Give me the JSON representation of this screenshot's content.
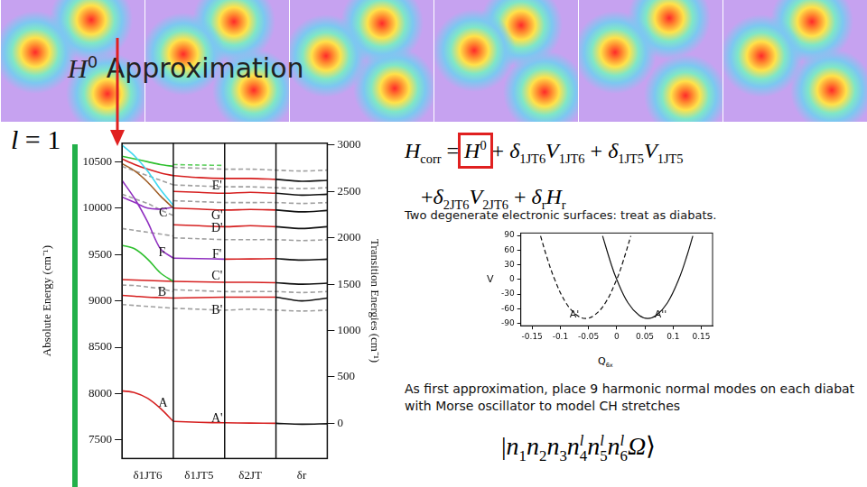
{
  "slide": {
    "title": [
      {
        "sym": "H",
        "sup": "0"
      },
      " Approximation"
    ],
    "ell": [
      {
        "sym": "l"
      },
      " = 1"
    ],
    "equation": [
      [
        {
          "sym": "H",
          "sub": "corr"
        },
        " = ",
        {
          "sym": "H",
          "sup": "0",
          "highlight": true
        },
        " + ",
        {
          "sym": "δ",
          "sub": "1JT6"
        },
        {
          "sym": "V",
          "sub": "1JT6"
        },
        " + ",
        {
          "sym": "δ",
          "sub": "1JT5"
        },
        {
          "sym": "V",
          "sub": "1JT5"
        }
      ],
      [
        "+",
        {
          "sym": "δ",
          "sub": "2JT6"
        },
        {
          "sym": "V",
          "sub": "2JT6"
        },
        " + ",
        {
          "sym": "δ",
          "sub": "r"
        },
        {
          "sym": "H",
          "sub": "r"
        }
      ]
    ],
    "text1": "Two degenerate electronic surfaces: treat as diabats.",
    "text2": "As first approximation, place 9 harmonic normal modes on each diabat with Morse oscillator to model CH stretches",
    "ket": [
      "|",
      {
        "sym": "n",
        "sub": "1"
      },
      {
        "sym": "n",
        "sub": "2"
      },
      {
        "sym": "n",
        "sub": "3"
      },
      {
        "sym": "n",
        "sub": "4",
        "sup": "l"
      },
      {
        "sym": "n",
        "sub": "5",
        "sup": "l"
      },
      {
        "sym": "n",
        "sub": "6",
        "sup": "l"
      },
      {
        "sym": "Ω"
      },
      "⟩"
    ]
  },
  "chart_data": [
    {
      "type": "line",
      "y_label": "Absolute Energy (cm⁻¹)",
      "y2_label": "Transition Energies (cm⁻¹)",
      "x": [
        0,
        0.25,
        0.5,
        0.75,
        1,
        1.5,
        2,
        2.5,
        3,
        3.5,
        4
      ],
      "xlim": [
        0,
        4
      ],
      "xticks": [
        {
          "value": 0.5,
          "label": "δ1JT6"
        },
        {
          "value": 1.5,
          "label": "δ1JT5"
        },
        {
          "value": 2.5,
          "label": "δ2JT"
        },
        {
          "value": 3.5,
          "label": "δr"
        }
      ],
      "separators": [
        1,
        2,
        3
      ],
      "ylim": [
        7300,
        10700
      ],
      "yticks": [
        7500,
        8000,
        8500,
        9000,
        9500,
        10000,
        10500
      ],
      "y2lim": [
        -380,
        3020
      ],
      "y2ticks": [
        0,
        500,
        1000,
        1500,
        2000,
        2500,
        3000
      ],
      "grid": false,
      "marker": "none",
      "series": [
        {
          "color": "#40d8f0",
          "line_style": "solid",
          "values": [
            10680,
            10560,
            10400,
            10200,
            10030,
            null,
            null,
            null,
            null,
            null,
            null
          ]
        },
        {
          "color": "#d62020",
          "line_style": "solid",
          "values": [
            10530,
            10470,
            10420,
            10380,
            10350,
            null,
            null,
            null,
            null,
            null,
            null
          ]
        },
        {
          "color": "#a0602a",
          "line_style": "solid",
          "values": [
            10480,
            10400,
            10280,
            10130,
            10000,
            null,
            null,
            null,
            null,
            null,
            null
          ]
        },
        {
          "color": "#30c030",
          "line_style": "solid",
          "values": [
            10560,
            10530,
            10500,
            10470,
            10450,
            null,
            null,
            null,
            null,
            null,
            null
          ]
        },
        {
          "color": "#9030c0",
          "line_style": "solid",
          "values": [
            10300,
            10100,
            9850,
            9560,
            9460,
            null,
            null,
            null,
            null,
            null,
            null
          ]
        },
        {
          "color": "#9030c0",
          "line_style": "solid",
          "values": [
            10120,
            10060,
            10000,
            9990,
            10010,
            null,
            null,
            null,
            null,
            null,
            null
          ]
        },
        {
          "color": "#30c030",
          "line_style": "solid",
          "values": [
            9600,
            9560,
            9450,
            9300,
            9210,
            null,
            null,
            null,
            null,
            null,
            null
          ]
        },
        {
          "color": "#d62020",
          "line_style": "solid",
          "values": [
            9230,
            9225,
            9220,
            9215,
            9210,
            null,
            null,
            null,
            null,
            null,
            null
          ]
        },
        {
          "color": "#d62020",
          "line_style": "solid",
          "values": [
            9060,
            9050,
            9040,
            9035,
            9030,
            null,
            null,
            null,
            null,
            null,
            null
          ]
        },
        {
          "color": "#d62020",
          "line_style": "solid",
          "values": [
            8030,
            8010,
            7950,
            7840,
            7700,
            null,
            null,
            null,
            null,
            null,
            null
          ]
        },
        {
          "color": "#a0a0a0",
          "line_style": "dashed",
          "values": [
            10450,
            10400,
            10350,
            10300,
            10250,
            null,
            null,
            null,
            null,
            null,
            null
          ]
        },
        {
          "color": "#a0a0a0",
          "line_style": "dashed",
          "values": [
            10150,
            10100,
            10050,
            9980,
            9920,
            null,
            null,
            null,
            null,
            null,
            null
          ]
        },
        {
          "color": "#a0a0a0",
          "line_style": "dashed",
          "values": [
            9780,
            9760,
            9740,
            9720,
            9700,
            null,
            null,
            null,
            null,
            null,
            null
          ]
        },
        {
          "color": "#a0a0a0",
          "line_style": "dashed",
          "values": [
            9170,
            9165,
            9150,
            9130,
            9100,
            null,
            null,
            null,
            null,
            null,
            null
          ]
        },
        {
          "color": "#a0a0a0",
          "line_style": "dashed",
          "values": [
            8960,
            8950,
            8940,
            8930,
            8920,
            null,
            null,
            null,
            null,
            null,
            null
          ]
        },
        {
          "color": "#d62020",
          "line_style": "solid",
          "values": [
            null,
            null,
            null,
            null,
            7700,
            7690,
            7685,
            7682,
            7680,
            null,
            null
          ]
        },
        {
          "color": "#d62020",
          "line_style": "solid",
          "values": [
            null,
            null,
            null,
            null,
            9030,
            9035,
            9040,
            9040,
            9040,
            null,
            null
          ]
        },
        {
          "color": "#d62020",
          "line_style": "solid",
          "values": [
            null,
            null,
            null,
            null,
            9210,
            9205,
            9200,
            9200,
            9195,
            null,
            null
          ]
        },
        {
          "color": "#9030c0",
          "line_style": "solid",
          "values": [
            null,
            null,
            null,
            null,
            9460,
            9455,
            9450,
            null,
            null,
            null,
            null
          ]
        },
        {
          "color": "#d62020",
          "line_style": "solid",
          "values": [
            null,
            null,
            null,
            null,
            null,
            null,
            9450,
            9452,
            9455,
            null,
            null
          ]
        },
        {
          "color": "#d62020",
          "line_style": "solid",
          "values": [
            null,
            null,
            null,
            null,
            9820,
            9810,
            9800,
            9810,
            9800,
            null,
            null
          ]
        },
        {
          "color": "#d62020",
          "line_style": "solid",
          "values": [
            null,
            null,
            null,
            null,
            10000,
            9990,
            9980,
            9985,
            9980,
            null,
            null
          ]
        },
        {
          "color": "#d62020",
          "line_style": "solid",
          "values": [
            null,
            null,
            null,
            null,
            10180,
            10170,
            10160,
            10170,
            10160,
            null,
            null
          ]
        },
        {
          "color": "#d62020",
          "line_style": "solid",
          "values": [
            null,
            null,
            null,
            null,
            10350,
            10330,
            10320,
            10320,
            10310,
            null,
            null
          ]
        },
        {
          "color": "#111111",
          "line_style": "solid",
          "values": [
            null,
            null,
            null,
            null,
            null,
            null,
            null,
            null,
            7680,
            7670,
            7675
          ]
        },
        {
          "color": "#111111",
          "line_style": "solid",
          "values": [
            null,
            null,
            null,
            null,
            null,
            null,
            null,
            null,
            9040,
            9000,
            9030
          ]
        },
        {
          "color": "#111111",
          "line_style": "solid",
          "values": [
            null,
            null,
            null,
            null,
            null,
            null,
            null,
            null,
            9195,
            9180,
            9190
          ]
        },
        {
          "color": "#111111",
          "line_style": "solid",
          "values": [
            null,
            null,
            null,
            null,
            null,
            null,
            null,
            null,
            9455,
            9440,
            9450
          ]
        },
        {
          "color": "#111111",
          "line_style": "solid",
          "values": [
            null,
            null,
            null,
            null,
            null,
            null,
            null,
            null,
            9800,
            9780,
            9800
          ]
        },
        {
          "color": "#111111",
          "line_style": "solid",
          "values": [
            null,
            null,
            null,
            null,
            null,
            null,
            null,
            null,
            9980,
            9960,
            9975
          ]
        },
        {
          "color": "#111111",
          "line_style": "solid",
          "values": [
            null,
            null,
            null,
            null,
            null,
            null,
            null,
            null,
            10160,
            10140,
            10150
          ]
        },
        {
          "color": "#111111",
          "line_style": "solid",
          "values": [
            null,
            null,
            null,
            null,
            null,
            null,
            null,
            null,
            10310,
            10290,
            10300
          ]
        },
        {
          "color": "#a0a0a0",
          "line_style": "dashed",
          "values": [
            null,
            null,
            null,
            null,
            10440,
            10430,
            10420,
            10420,
            10410,
            10400,
            10410
          ]
        },
        {
          "color": "#a0a0a0",
          "line_style": "dashed",
          "values": [
            null,
            null,
            null,
            null,
            10250,
            10240,
            10230,
            10230,
            10220,
            10210,
            10220
          ]
        },
        {
          "color": "#a0a0a0",
          "line_style": "dashed",
          "values": [
            null,
            null,
            null,
            null,
            10080,
            10070,
            10060,
            10060,
            10060,
            10050,
            10060
          ]
        },
        {
          "color": "#a0a0a0",
          "line_style": "dashed",
          "values": [
            null,
            null,
            null,
            null,
            9680,
            9670,
            9660,
            9660,
            9660,
            9650,
            9660
          ]
        },
        {
          "color": "#a0a0a0",
          "line_style": "dashed",
          "values": [
            null,
            null,
            null,
            null,
            9120,
            9110,
            9100,
            9100,
            9100,
            9090,
            9100
          ]
        },
        {
          "color": "#a0a0a0",
          "line_style": "dashed",
          "values": [
            null,
            null,
            null,
            null,
            8920,
            8910,
            8900,
            8910,
            8900,
            8890,
            8900
          ]
        },
        {
          "color": "#60d060",
          "line_style": "dashed",
          "values": [
            null,
            null,
            null,
            null,
            10470,
            10465,
            10460,
            null,
            null,
            null,
            null
          ]
        }
      ],
      "annotations": [
        {
          "text": "A",
          "x": 0.8,
          "y": 7890
        },
        {
          "text": "B",
          "x": 0.78,
          "y": 9090
        },
        {
          "text": "C",
          "x": 0.8,
          "y": 9943
        },
        {
          "text": "F",
          "x": 0.78,
          "y": 9520
        },
        {
          "text": "A'",
          "x": 1.85,
          "y": 7733
        },
        {
          "text": "B'",
          "x": 1.85,
          "y": 8894
        },
        {
          "text": "C'",
          "x": 1.85,
          "y": 9265
        },
        {
          "text": "F'",
          "x": 1.85,
          "y": 9497
        },
        {
          "text": "D'",
          "x": 1.85,
          "y": 9776
        },
        {
          "text": "G'",
          "x": 1.85,
          "y": 9915
        },
        {
          "text": "E'",
          "x": 1.85,
          "y": 10240
        }
      ]
    },
    {
      "type": "line",
      "x_label": {
        "base": "Q",
        "sub": "6x"
      },
      "y_label": "V",
      "xlim": [
        -0.17,
        0.17
      ],
      "xticks": [
        -0.15,
        -0.1,
        -0.05,
        0,
        0.05,
        0.1,
        0.15
      ],
      "ylim": [
        -95,
        95
      ],
      "yticks": [
        -90,
        -60,
        -30,
        0,
        30,
        60,
        90
      ],
      "grid": false,
      "marker": "none",
      "series": [
        {
          "color": "#111111",
          "line_style": "dashed",
          "x": [
            -0.135,
            -0.125,
            -0.11,
            -0.09,
            -0.07,
            -0.055,
            -0.04,
            -0.02,
            0,
            0.01,
            0.025
          ],
          "values": [
            89,
            50,
            0,
            -48,
            -74,
            -80,
            -74,
            -48,
            0,
            32,
            89
          ]
        },
        {
          "color": "#111111",
          "line_style": "solid",
          "x": [
            -0.025,
            -0.01,
            0,
            0.02,
            0.04,
            0.055,
            0.07,
            0.09,
            0.11,
            0.125,
            0.135
          ],
          "values": [
            89,
            32,
            0,
            -48,
            -74,
            -80,
            -74,
            -48,
            0,
            50,
            89
          ]
        }
      ],
      "annotations": [
        {
          "text": "A'",
          "x": -0.075,
          "y": -72
        },
        {
          "text": "A''",
          "x": 0.078,
          "y": -72
        }
      ]
    }
  ]
}
